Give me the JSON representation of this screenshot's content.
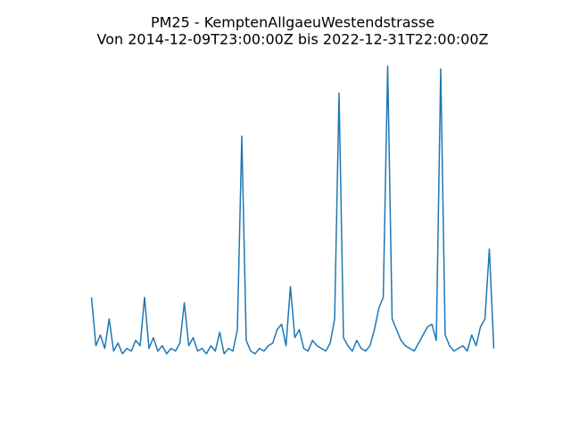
{
  "chart_data": {
    "type": "line",
    "title": "PM25 - KemptenAllgaeuWestendstrasse",
    "subtitle": "Von 2014-12-09T23:00:00Z bis 2022-12-31T22:00:00Z",
    "color": "#1f77b4",
    "ylim": [
      -5.5,
      115.5
    ],
    "values": [
      24,
      6,
      10,
      5,
      16,
      4,
      7,
      3,
      5,
      4,
      8,
      6,
      24,
      5,
      9,
      4,
      6,
      3,
      5,
      4,
      7,
      22,
      6,
      9,
      4,
      5,
      3,
      6,
      4,
      11,
      3,
      5,
      4,
      12,
      84,
      8,
      4,
      3,
      5,
      4,
      6,
      7,
      12,
      14,
      6,
      28,
      9,
      12,
      5,
      4,
      8,
      6,
      5,
      4,
      7,
      16,
      100,
      9,
      6,
      4,
      8,
      5,
      4,
      6,
      12,
      20,
      24,
      110,
      16,
      12,
      8,
      6,
      5,
      4,
      7,
      10,
      13,
      14,
      8,
      109,
      10,
      6,
      4,
      5,
      6,
      4,
      10,
      6,
      13,
      16,
      42,
      5
    ]
  }
}
